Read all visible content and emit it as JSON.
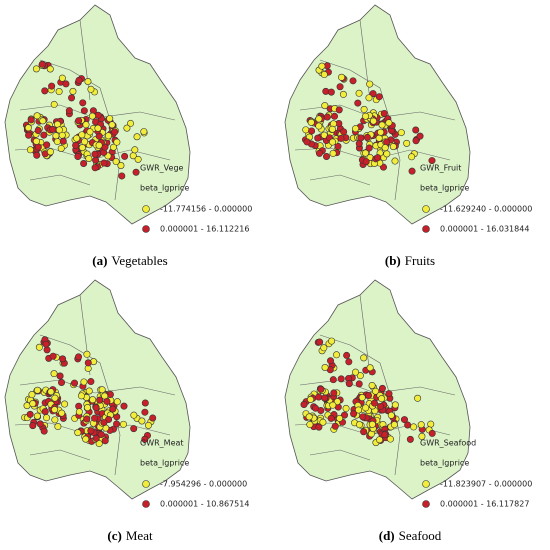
{
  "panels": [
    {
      "layer": "GWR_Vege",
      "field": "beta_lgprice",
      "classes": [
        {
          "label": "-11.774156 - 0.000000",
          "color": "#f2ec3a"
        },
        {
          "label": "0.000001 - 16.112216",
          "color": "#c8202a"
        }
      ],
      "caption_letter": "(a)",
      "caption": "Vegetables"
    },
    {
      "layer": "GWR_Fruit",
      "field": "beta_lgprice",
      "classes": [
        {
          "label": "-11.629240 - 0.000000",
          "color": "#f2ec3a"
        },
        {
          "label": "0.000001 - 16.031844",
          "color": "#c8202a"
        }
      ],
      "caption_letter": "(b)",
      "caption": "Fruits"
    },
    {
      "layer": "GWR_Meat",
      "field": "beta_lgprice",
      "classes": [
        {
          "label": "-7.954296 - 0.000000",
          "color": "#f2ec3a"
        },
        {
          "label": "0.000001 - 10.867514",
          "color": "#c8202a"
        }
      ],
      "caption_letter": "(c)",
      "caption": "Meat"
    },
    {
      "layer": "GWR_Seafood",
      "field": "beta_lgprice",
      "classes": [
        {
          "label": "-11.823907 - 0.000000",
          "color": "#f2ec3a"
        },
        {
          "label": "0.000001 - 16.117827",
          "color": "#c8202a"
        }
      ],
      "caption_letter": "(d)",
      "caption": "Seafood"
    }
  ]
}
